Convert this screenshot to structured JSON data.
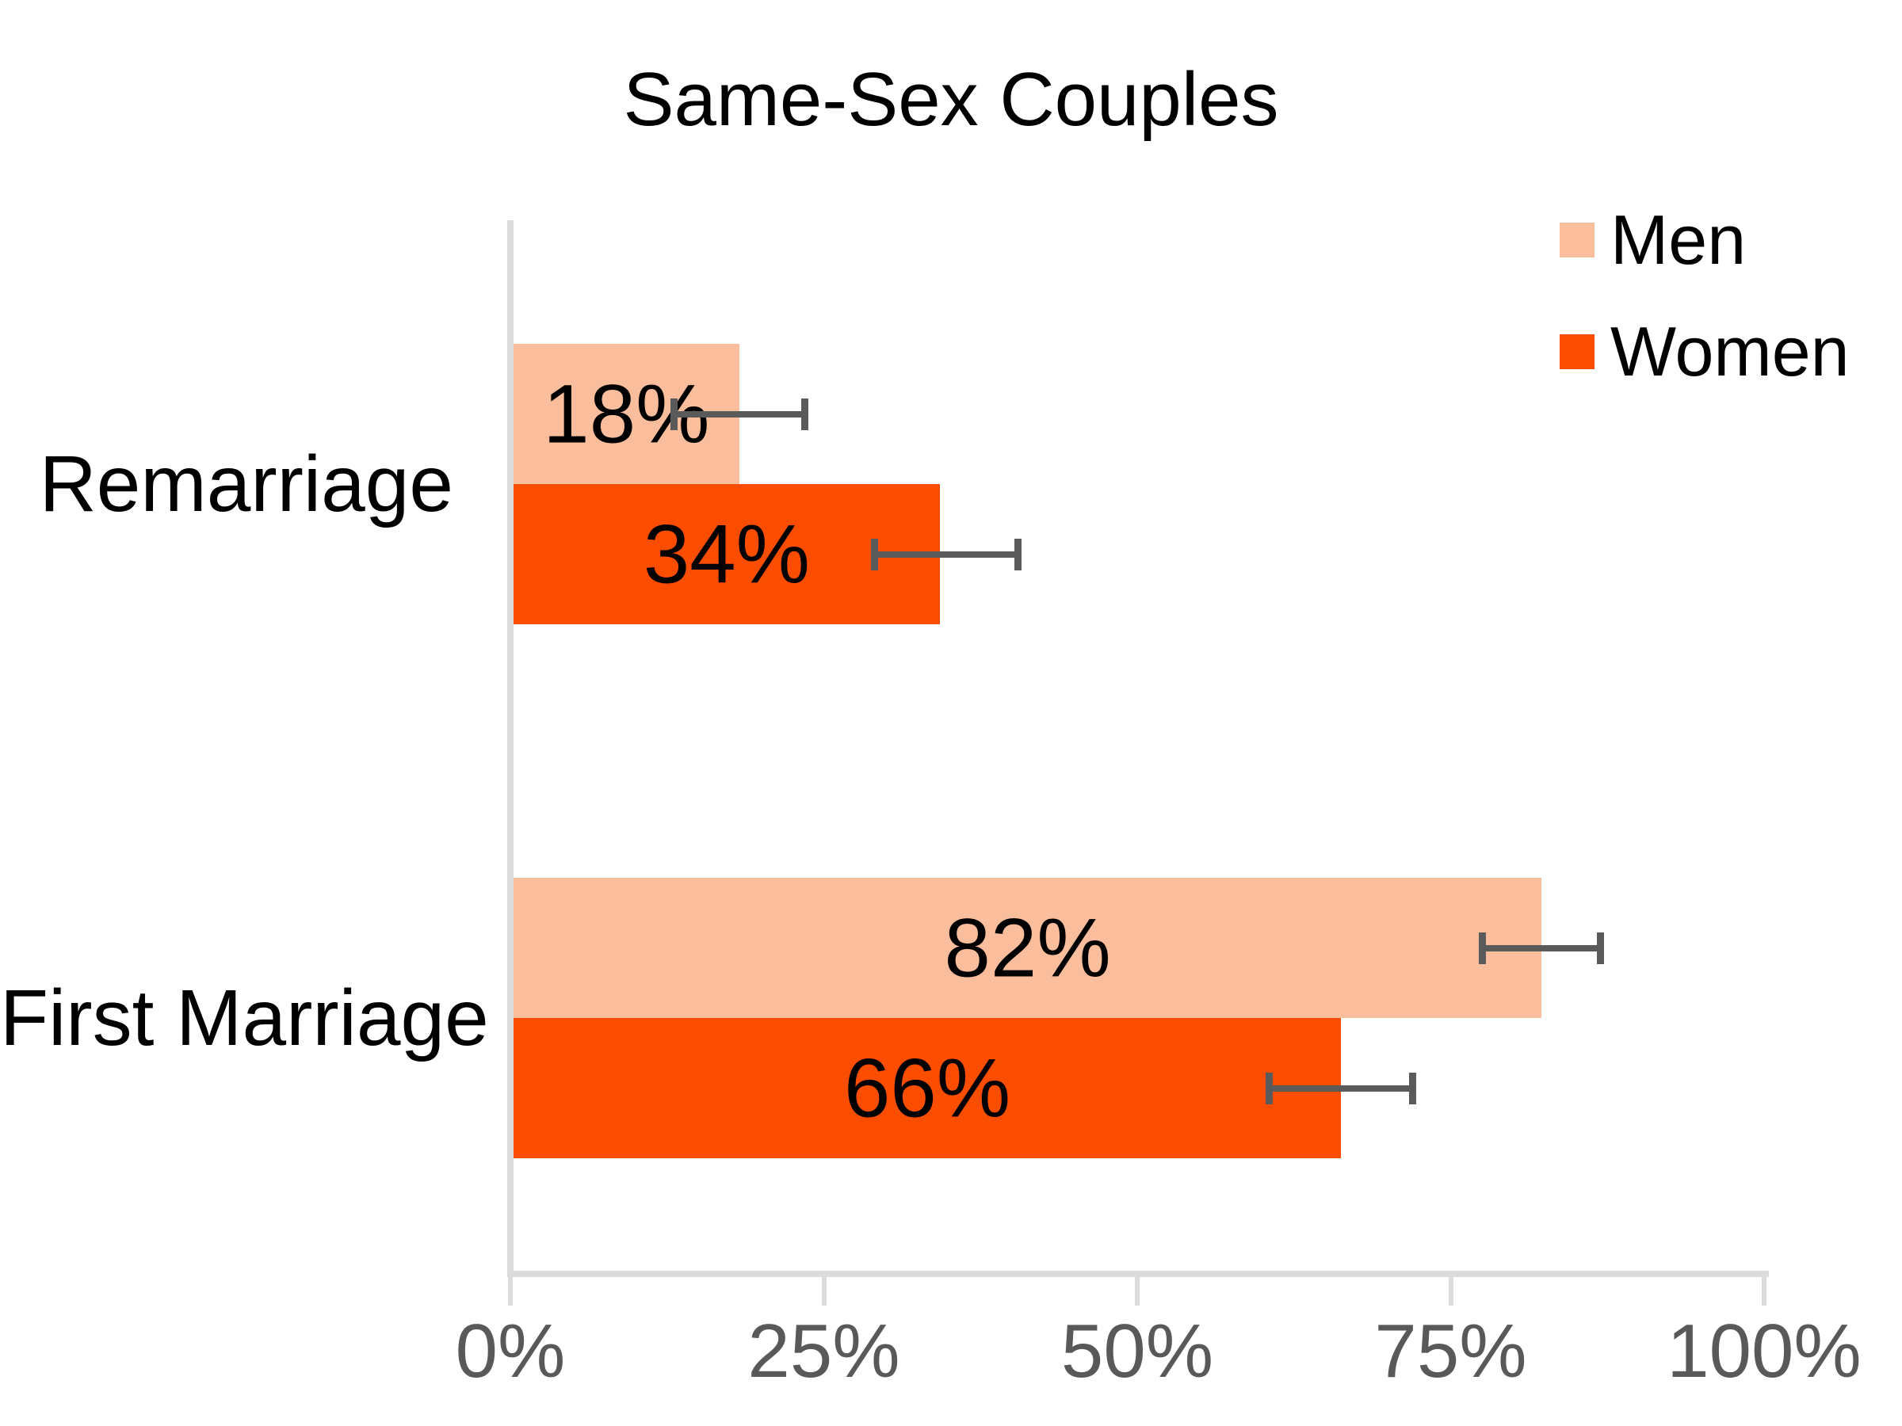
{
  "title": "Same-Sex Couples",
  "legend": {
    "position": "upper right",
    "items": [
      {
        "label": "Men",
        "color": "#FBBE9C"
      },
      {
        "label": "Women",
        "color": "#FB4D00"
      }
    ]
  },
  "chart_data": {
    "type": "bar",
    "orientation": "horizontal",
    "title": "Same-Sex Couples",
    "categories": [
      "Remarriage",
      "First Marriage"
    ],
    "series": [
      {
        "name": "Men",
        "color": "#FBBE9C",
        "values": [
          18,
          82
        ],
        "value_labels": [
          "18%",
          "82%"
        ],
        "error_low": [
          12.5,
          77
        ],
        "error_high": [
          23.5,
          87
        ]
      },
      {
        "name": "Women",
        "color": "#FB4D00",
        "values": [
          34,
          66
        ],
        "value_labels": [
          "34%",
          "66%"
        ],
        "error_low": [
          28.5,
          60
        ],
        "error_high": [
          40.5,
          72
        ]
      }
    ],
    "xlabel": "",
    "ylabel": "",
    "xlim": [
      0,
      100
    ],
    "x_tick_values": [
      0,
      25,
      50,
      75,
      100
    ],
    "x_tick_labels": [
      "0%",
      "25%",
      "50%",
      "75%",
      "100%"
    ],
    "grid": false,
    "legend_position": "upper right",
    "colors": {
      "axis_line": "#DCDCDC",
      "tick_label": "#595959",
      "error_bar": "#5A5A5A",
      "data_label": "#000000",
      "title": "#000000",
      "background": "#FFFFFF"
    }
  }
}
